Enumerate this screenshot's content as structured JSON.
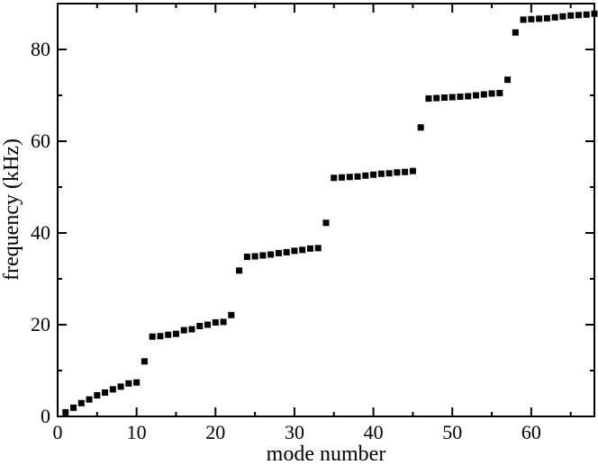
{
  "chart_data": {
    "type": "scatter",
    "title": "",
    "xlabel": "mode number",
    "ylabel": "frequency (kHz)",
    "xlim": [
      0,
      68
    ],
    "ylim": [
      0,
      90
    ],
    "xticks": [
      0,
      10,
      20,
      30,
      40,
      50,
      60
    ],
    "yticks": [
      0,
      20,
      40,
      60,
      80
    ],
    "grid": false,
    "marker": "square",
    "marker_color": "#000000",
    "x": [
      1,
      2,
      3,
      4,
      5,
      6,
      7,
      8,
      9,
      10,
      11,
      12,
      13,
      14,
      15,
      16,
      17,
      18,
      19,
      20,
      21,
      22,
      23,
      24,
      25,
      26,
      27,
      28,
      29,
      30,
      31,
      32,
      33,
      34,
      35,
      36,
      37,
      38,
      39,
      40,
      41,
      42,
      43,
      44,
      45,
      46,
      47,
      48,
      49,
      50,
      51,
      52,
      53,
      54,
      55,
      56,
      57,
      58,
      59,
      60,
      61,
      62,
      63,
      64,
      65,
      66,
      67,
      68
    ],
    "y": [
      0.9,
      1.9,
      2.9,
      3.7,
      4.6,
      5.2,
      5.9,
      6.5,
      7.2,
      7.4,
      12.0,
      17.4,
      17.5,
      17.8,
      18.0,
      18.8,
      19.0,
      19.7,
      20.0,
      20.5,
      20.6,
      22.1,
      31.8,
      34.8,
      34.9,
      35.1,
      35.3,
      35.6,
      35.8,
      36.1,
      36.3,
      36.6,
      36.7,
      42.2,
      52.0,
      52.1,
      52.2,
      52.3,
      52.5,
      52.7,
      52.9,
      53.0,
      53.2,
      53.3,
      53.5,
      63.0,
      69.3,
      69.4,
      69.5,
      69.6,
      69.7,
      69.8,
      70.0,
      70.2,
      70.4,
      70.5,
      73.4,
      83.7,
      86.5,
      86.6,
      86.7,
      86.8,
      87.0,
      87.2,
      87.4,
      87.5,
      87.6,
      87.8
    ]
  }
}
